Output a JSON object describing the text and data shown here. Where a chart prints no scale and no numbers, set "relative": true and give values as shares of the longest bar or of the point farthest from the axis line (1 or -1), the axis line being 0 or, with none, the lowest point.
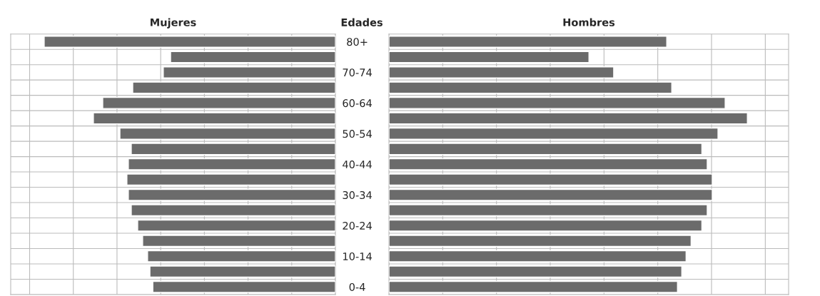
{
  "chart_data": [
    {
      "type": "bar",
      "orientation": "horizontal",
      "relative": true,
      "title": "Mujeres",
      "ylabel": "Edades",
      "color": "#6b6b6b",
      "grid": true,
      "tick_labels": "y",
      "categories": [
        "80+",
        null,
        "70-74",
        null,
        "60-64",
        null,
        "50-54",
        null,
        "40-44",
        null,
        "30-34",
        null,
        "20-24",
        null,
        "10-14",
        null,
        "0-4"
      ],
      "values": [
        1,
        0.566,
        0.591,
        0.696,
        0.799,
        0.831,
        0.74,
        0.701,
        0.711,
        0.716,
        0.711,
        0.701,
        0.679,
        0.662,
        0.645,
        0.637,
        0.627
      ]
    },
    {
      "type": "bar",
      "orientation": "horizontal",
      "relative": true,
      "title": "Hombres",
      "color": "#6b6b6b",
      "grid": true,
      "tick_labels": false,
      "categories": [
        null,
        null,
        null,
        null,
        null,
        null,
        null,
        null,
        null,
        null,
        null,
        null,
        null,
        null,
        null,
        null,
        null
      ],
      "values": [
        0.775,
        0.558,
        0.627,
        0.789,
        0.938,
        1,
        0.918,
        0.873,
        0.888,
        0.902,
        0.902,
        0.888,
        0.873,
        0.843,
        0.829,
        0.817,
        0.805
      ]
    }
  ]
}
